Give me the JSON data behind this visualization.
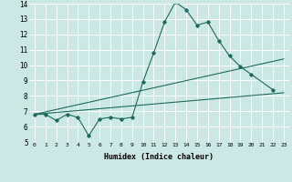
{
  "xlabel": "Humidex (Indice chaleur)",
  "ylabel": "",
  "xlim": [
    -0.5,
    23.5
  ],
  "ylim": [
    5,
    14
  ],
  "xticks": [
    0,
    1,
    2,
    3,
    4,
    5,
    6,
    7,
    8,
    9,
    10,
    11,
    12,
    13,
    14,
    15,
    16,
    17,
    18,
    19,
    20,
    21,
    22,
    23
  ],
  "yticks": [
    5,
    6,
    7,
    8,
    9,
    10,
    11,
    12,
    13,
    14
  ],
  "bg_color": "#cce8e4",
  "grid_color": "#ffffff",
  "line_color": "#1a6b5e",
  "line1_x": [
    0,
    1,
    2,
    3,
    4,
    5,
    6,
    7,
    8,
    9,
    10,
    11,
    12,
    13,
    14,
    15,
    16,
    17,
    18,
    19,
    20,
    22
  ],
  "line1_y": [
    6.8,
    6.8,
    6.4,
    6.8,
    6.6,
    5.4,
    6.5,
    6.6,
    6.5,
    6.6,
    8.9,
    10.8,
    12.8,
    14.1,
    13.6,
    12.6,
    12.8,
    11.6,
    10.6,
    9.9,
    9.4,
    8.4
  ],
  "line2_x": [
    0,
    23
  ],
  "line2_y": [
    6.8,
    8.2
  ],
  "line3_x": [
    0,
    23
  ],
  "line3_y": [
    6.8,
    10.4
  ],
  "figsize": [
    3.2,
    2.0
  ],
  "dpi": 100
}
